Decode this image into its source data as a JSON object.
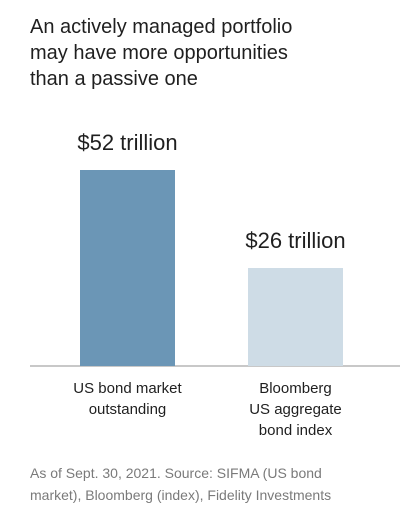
{
  "chart_data": {
    "type": "bar",
    "title": "An actively managed portfolio\nmay have more opportunities\nthan a passive one",
    "categories": [
      "US bond market\noutstanding",
      "Bloomberg\nUS aggregate\nbond index"
    ],
    "values": [
      52,
      26
    ],
    "value_labels": [
      "$52 trillion",
      "$26 trillion"
    ],
    "colors": [
      "#6b96b6",
      "#cedce6"
    ],
    "note": "As of Sept. 30, 2021. Source: SIFMA (US bond\nmarket), Bloomberg (index), Fidelity Investments"
  }
}
